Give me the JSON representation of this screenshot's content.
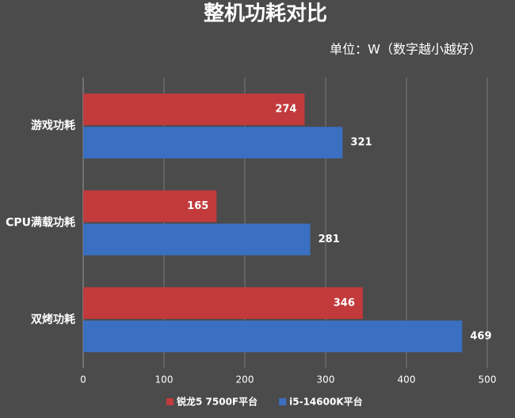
{
  "chart_data": {
    "type": "bar",
    "orientation": "horizontal",
    "title": "整机功耗对比",
    "subtitle": "单位：W（数字越小越好）",
    "categories": [
      "游戏功耗",
      "CPU满载功耗",
      "双烤功耗"
    ],
    "series": [
      {
        "name": "锐龙5 7500F平台",
        "color": "#c23a3c",
        "values": [
          274,
          165,
          346
        ]
      },
      {
        "name": "i5-14600K平台",
        "color": "#3b6fc1",
        "values": [
          321,
          281,
          469
        ]
      }
    ],
    "xlim": [
      0,
      500
    ],
    "xticks": [
      0,
      100,
      200,
      300,
      400,
      500
    ],
    "grid": true,
    "legend": "bottom"
  }
}
